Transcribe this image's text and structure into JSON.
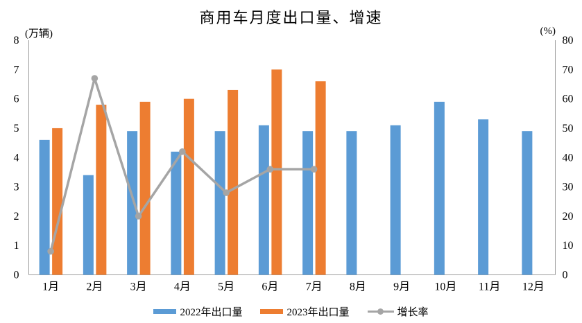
{
  "title": "商用车月度出口量、增速",
  "chart_data": {
    "type": "bar",
    "combo": "bar+line",
    "title": "商用车月度出口量、增速",
    "categories": [
      "1月",
      "2月",
      "3月",
      "4月",
      "5月",
      "6月",
      "7月",
      "8月",
      "9月",
      "10月",
      "11月",
      "12月"
    ],
    "series": [
      {
        "name": "2022年出口量",
        "type": "bar",
        "axis": "left",
        "color": "#5B9BD5",
        "values": [
          4.6,
          3.4,
          4.9,
          4.2,
          4.9,
          5.1,
          4.9,
          4.9,
          5.1,
          5.9,
          5.3,
          4.9
        ]
      },
      {
        "name": "2023年出口量",
        "type": "bar",
        "axis": "left",
        "color": "#ED7D31",
        "values": [
          5.0,
          5.8,
          5.9,
          6.0,
          6.3,
          7.0,
          6.6
        ]
      },
      {
        "name": "增长率",
        "type": "line",
        "axis": "right",
        "color": "#A5A5A5",
        "values": [
          8,
          67,
          20,
          42,
          28,
          36,
          36
        ]
      }
    ],
    "left_axis": {
      "unit": "(万辆)",
      "min": 0,
      "max": 8,
      "step": 1,
      "ticks": [
        0,
        1,
        2,
        3,
        4,
        5,
        6,
        7,
        8
      ]
    },
    "right_axis": {
      "unit": "(%)",
      "min": 0,
      "max": 80,
      "step": 10,
      "ticks": [
        0,
        10,
        20,
        30,
        40,
        50,
        60,
        70,
        80
      ]
    },
    "axis_color": "#9C9C9C",
    "grid": false,
    "legend_position": "bottom",
    "xlabel": "",
    "ylabel": ""
  }
}
